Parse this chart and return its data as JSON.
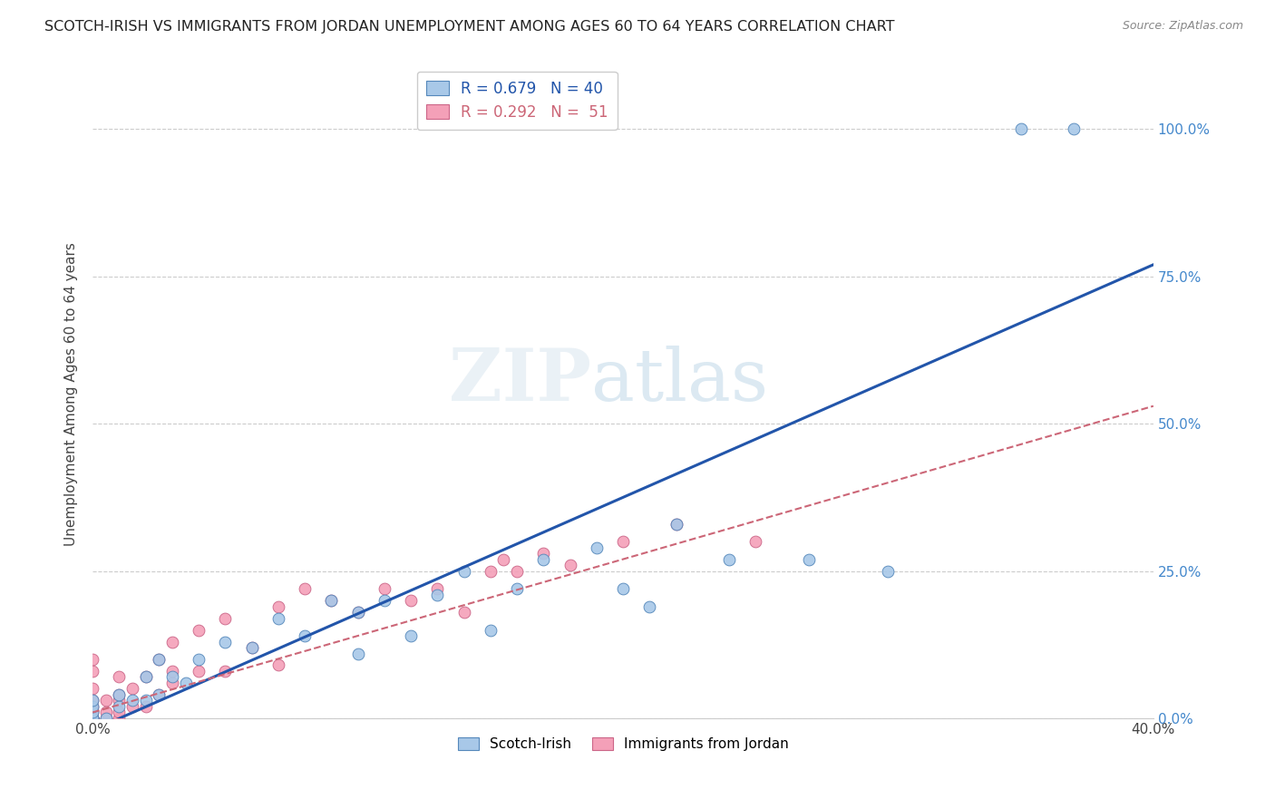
{
  "title": "SCOTCH-IRISH VS IMMIGRANTS FROM JORDAN UNEMPLOYMENT AMONG AGES 60 TO 64 YEARS CORRELATION CHART",
  "source": "Source: ZipAtlas.com",
  "ylabel": "Unemployment Among Ages 60 to 64 years",
  "xlim": [
    0.0,
    0.4
  ],
  "ylim": [
    0.0,
    1.1
  ],
  "ytick_labels_right": [
    "0.0%",
    "25.0%",
    "50.0%",
    "75.0%",
    "100.0%"
  ],
  "ytick_values": [
    0.0,
    0.25,
    0.5,
    0.75,
    1.0
  ],
  "xtick_values": [
    0.0,
    0.05,
    0.1,
    0.15,
    0.2,
    0.25,
    0.3,
    0.35,
    0.4
  ],
  "xtick_labels": [
    "0.0%",
    "",
    "",
    "",
    "",
    "",
    "",
    "",
    "40.0%"
  ],
  "blue_R": 0.679,
  "blue_N": 40,
  "pink_R": 0.292,
  "pink_N": 51,
  "blue_color": "#a8c8e8",
  "pink_color": "#f4a0b8",
  "blue_edge_color": "#5588bb",
  "pink_edge_color": "#cc6688",
  "blue_line_color": "#2255aa",
  "pink_line_color": "#cc6677",
  "right_label_color": "#4488cc",
  "watermark": "ZIPatlas",
  "blue_line_x0": 0.0,
  "blue_line_y0": -0.02,
  "blue_line_x1": 0.4,
  "blue_line_y1": 0.77,
  "pink_line_x0": 0.0,
  "pink_line_y0": 0.01,
  "pink_line_x1": 0.4,
  "pink_line_y1": 0.53,
  "blue_scatter_x": [
    0.0,
    0.0,
    0.0,
    0.0,
    0.0,
    0.0,
    0.005,
    0.01,
    0.01,
    0.015,
    0.02,
    0.02,
    0.025,
    0.025,
    0.03,
    0.035,
    0.04,
    0.05,
    0.06,
    0.07,
    0.08,
    0.09,
    0.1,
    0.1,
    0.11,
    0.12,
    0.13,
    0.14,
    0.15,
    0.16,
    0.17,
    0.19,
    0.2,
    0.21,
    0.22,
    0.24,
    0.27,
    0.3,
    0.35,
    0.37
  ],
  "blue_scatter_y": [
    0.0,
    0.0,
    0.0,
    0.01,
    0.02,
    0.03,
    0.0,
    0.02,
    0.04,
    0.03,
    0.03,
    0.07,
    0.04,
    0.1,
    0.07,
    0.06,
    0.1,
    0.13,
    0.12,
    0.17,
    0.14,
    0.2,
    0.11,
    0.18,
    0.2,
    0.14,
    0.21,
    0.25,
    0.15,
    0.22,
    0.27,
    0.29,
    0.22,
    0.19,
    0.33,
    0.27,
    0.27,
    0.25,
    1.0,
    1.0
  ],
  "pink_scatter_x": [
    0.0,
    0.0,
    0.0,
    0.0,
    0.0,
    0.0,
    0.0,
    0.0,
    0.0,
    0.0,
    0.0,
    0.0,
    0.005,
    0.005,
    0.005,
    0.01,
    0.01,
    0.01,
    0.01,
    0.01,
    0.015,
    0.015,
    0.02,
    0.02,
    0.025,
    0.025,
    0.03,
    0.03,
    0.03,
    0.04,
    0.04,
    0.05,
    0.05,
    0.06,
    0.07,
    0.07,
    0.08,
    0.09,
    0.1,
    0.11,
    0.12,
    0.13,
    0.14,
    0.15,
    0.155,
    0.16,
    0.17,
    0.18,
    0.2,
    0.22,
    0.25
  ],
  "pink_scatter_y": [
    0.0,
    0.0,
    0.0,
    0.0,
    0.0,
    0.0,
    0.01,
    0.02,
    0.03,
    0.05,
    0.08,
    0.1,
    0.0,
    0.01,
    0.03,
    0.0,
    0.01,
    0.03,
    0.04,
    0.07,
    0.02,
    0.05,
    0.02,
    0.07,
    0.04,
    0.1,
    0.06,
    0.08,
    0.13,
    0.08,
    0.15,
    0.08,
    0.17,
    0.12,
    0.09,
    0.19,
    0.22,
    0.2,
    0.18,
    0.22,
    0.2,
    0.22,
    0.18,
    0.25,
    0.27,
    0.25,
    0.28,
    0.26,
    0.3,
    0.33,
    0.3
  ]
}
